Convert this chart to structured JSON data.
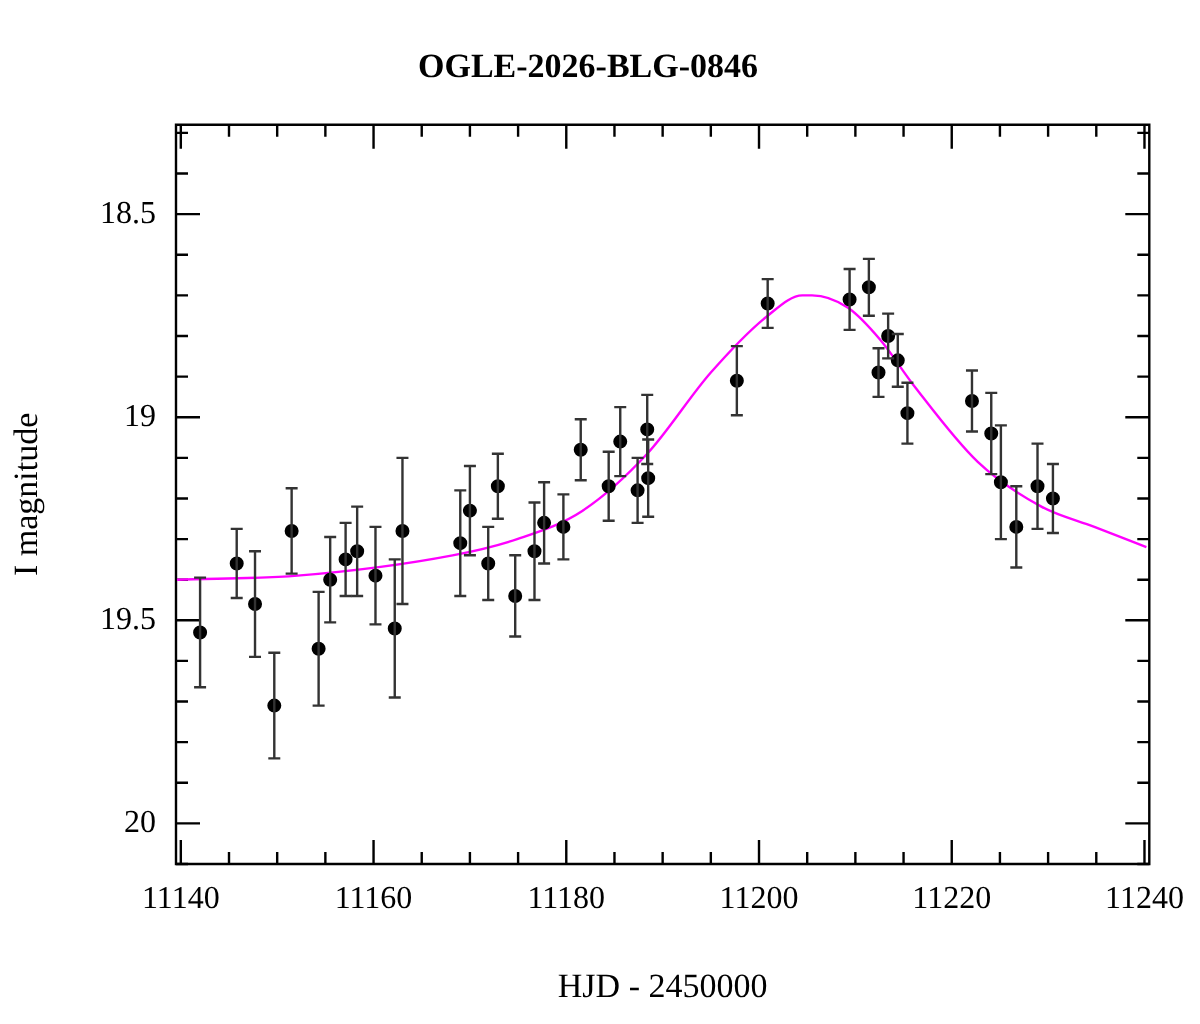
{
  "chart_data": {
    "type": "scatter",
    "title": "OGLE-2026-BLG-0846",
    "xlabel": "HJD - 2450000",
    "ylabel": "I magnitude",
    "xlim": [
      11139.5,
      11240.5
    ],
    "ylim": [
      20.1,
      18.28
    ],
    "xticks": [
      11140,
      {
        "value": 11145,
        "label": null
      },
      {
        "value": 11150,
        "label": null
      },
      {
        "value": 11155,
        "label": null
      },
      11160,
      {
        "value": 11165,
        "label": null
      },
      {
        "value": 11170,
        "label": null
      },
      {
        "value": 11175,
        "label": null
      },
      11180,
      {
        "value": 11185,
        "label": null
      },
      {
        "value": 11190,
        "label": null
      },
      {
        "value": 11195,
        "label": null
      },
      11200,
      {
        "value": 11205,
        "label": null
      },
      {
        "value": 11210,
        "label": null
      },
      {
        "value": 11215,
        "label": null
      },
      11220,
      {
        "value": 11225,
        "label": null
      },
      {
        "value": 11230,
        "label": null
      },
      {
        "value": 11235,
        "label": null
      },
      11240
    ],
    "yticks": [
      {
        "value": 18.3,
        "label": null
      },
      {
        "value": 18.4,
        "label": null
      },
      18.5,
      {
        "value": 18.6,
        "label": null
      },
      {
        "value": 18.7,
        "label": null
      },
      {
        "value": 18.8,
        "label": null
      },
      {
        "value": 18.9,
        "label": null
      },
      {
        "value": 19,
        "label": "19"
      },
      {
        "value": 19.1,
        "label": null
      },
      {
        "value": 19.2,
        "label": null
      },
      {
        "value": 19.3,
        "label": null
      },
      {
        "value": 19.4,
        "label": null
      },
      19.5,
      {
        "value": 19.6,
        "label": null
      },
      {
        "value": 19.7,
        "label": null
      },
      {
        "value": 19.8,
        "label": null
      },
      {
        "value": 19.9,
        "label": null
      },
      {
        "value": 20,
        "label": "20"
      },
      {
        "value": 20.1,
        "label": null
      }
    ],
    "grid": false,
    "legend": false,
    "series": [
      {
        "type": "scatter",
        "color": "#000000",
        "marker": "circle",
        "x": [
          11142.0,
          11145.8,
          11147.7,
          11149.7,
          11151.5,
          11154.3,
          11155.5,
          11157.1,
          11158.3,
          11160.2,
          11162.2,
          11163.0,
          11169.0,
          11170.0,
          11171.9,
          11172.9,
          11174.7,
          11176.7,
          11177.7,
          11179.7,
          11181.5,
          11184.4,
          11185.6,
          11187.4,
          11188.4,
          11188.5,
          11197.7,
          11200.9,
          11209.4,
          11211.4,
          11212.4,
          11213.4,
          11214.4,
          11215.4,
          11222.1,
          11224.1,
          11225.1,
          11226.7,
          11228.9,
          11230.5
        ],
        "values": [
          19.53,
          19.36,
          19.46,
          19.71,
          19.28,
          19.57,
          19.4,
          19.35,
          19.33,
          19.39,
          19.52,
          19.28,
          19.31,
          19.23,
          19.36,
          19.17,
          19.44,
          19.33,
          19.26,
          19.27,
          19.08,
          19.17,
          19.06,
          19.18,
          19.03,
          19.15,
          18.91,
          18.72,
          18.71,
          18.68,
          18.89,
          18.8,
          18.86,
          18.99,
          18.96,
          19.04,
          19.16,
          19.27,
          19.17,
          19.2
        ],
        "errors": [
          0.135,
          0.085,
          0.13,
          0.13,
          0.105,
          0.14,
          0.105,
          0.09,
          0.11,
          0.12,
          0.17,
          0.18,
          0.13,
          0.11,
          0.09,
          0.08,
          0.1,
          0.12,
          0.1,
          0.08,
          0.075,
          0.085,
          0.085,
          0.08,
          0.085,
          0.095,
          0.085,
          0.06,
          0.075,
          0.07,
          0.06,
          0.055,
          0.065,
          0.075,
          0.075,
          0.1,
          0.14,
          0.1,
          0.105,
          0.085
        ]
      },
      {
        "type": "line",
        "color": "#ff00ff",
        "marker": "none",
        "line_style": "solid",
        "x": [
          11139.6,
          11152.1,
          11168.2,
          11174.9,
          11181.7,
          11188.4,
          11195.0,
          11200.9,
          11204.5,
          11205.5,
          11209.2,
          11212.6,
          11216.0,
          11222.7,
          11229.3,
          11234.8,
          11240.2
        ],
        "values": [
          19.4,
          19.39,
          19.34,
          19.3,
          19.23,
          19.09,
          18.89,
          18.75,
          18.7,
          18.7,
          18.73,
          18.81,
          18.92,
          19.11,
          19.22,
          19.27,
          19.32
        ]
      }
    ]
  }
}
